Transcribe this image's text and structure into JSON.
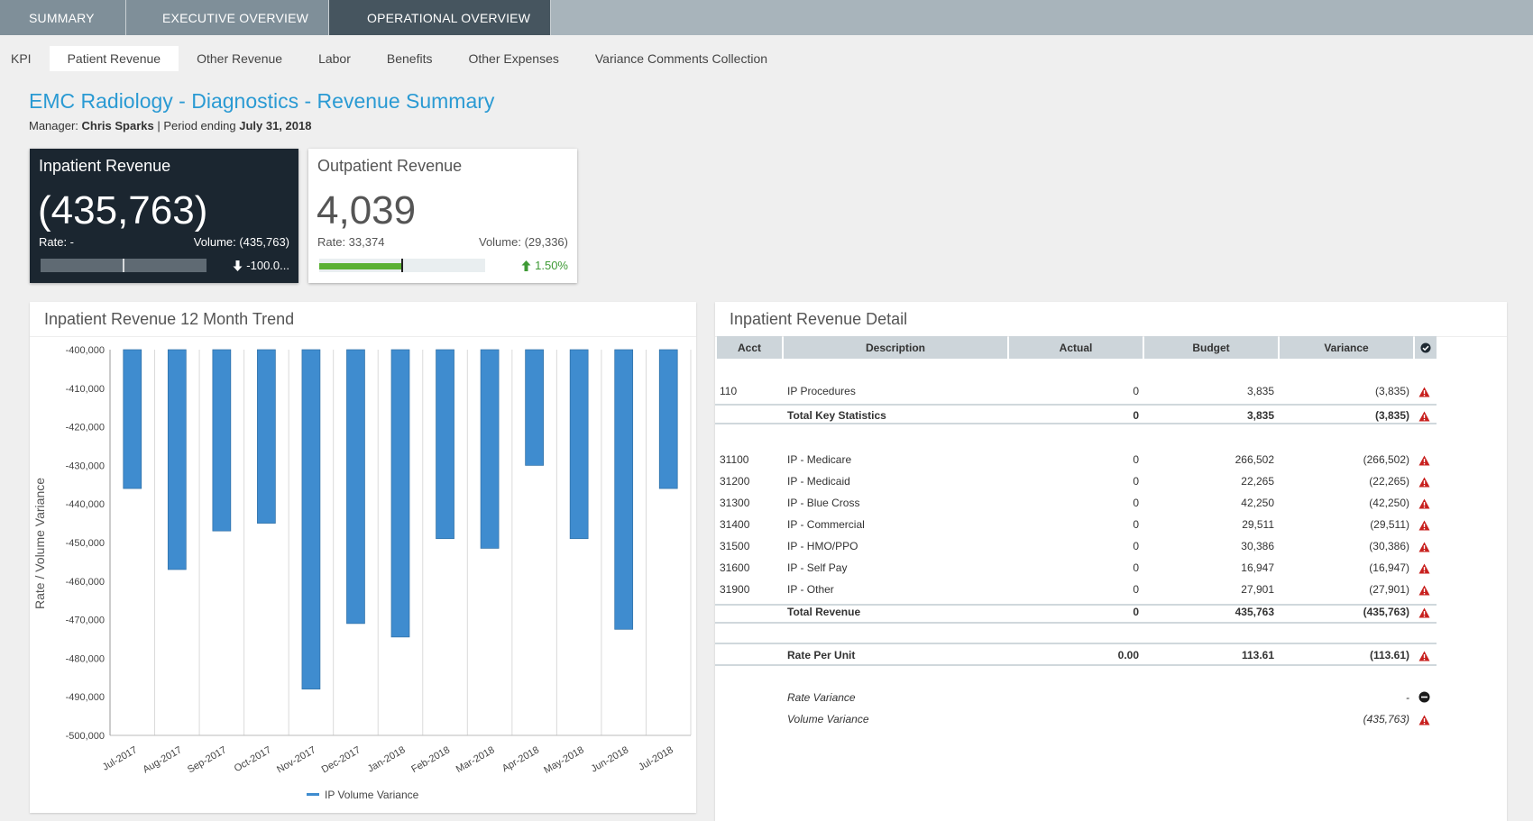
{
  "top_tabs": [
    "SUMMARY",
    "EXECUTIVE OVERVIEW",
    "OPERATIONAL OVERVIEW"
  ],
  "sub_tabs": [
    "KPI",
    "Patient Revenue",
    "Other Revenue",
    "Labor",
    "Benefits",
    "Other Expenses",
    "Variance Comments Collection"
  ],
  "header": {
    "title": "EMC Radiology - Diagnostics - Revenue Summary",
    "manager_label": "Manager:",
    "manager": "Chris Sparks",
    "period_label": "| Period ending",
    "period": "July 31, 2018"
  },
  "kpis": {
    "inpatient": {
      "title": "Inpatient Revenue",
      "value": "(435,763)",
      "rate": "Rate: -",
      "volume": "Volume: (435,763)",
      "change": "-100.0...",
      "bar_fill": 0,
      "marker": 0.5
    },
    "outpatient": {
      "title": "Outpatient Revenue",
      "value": "4,039",
      "rate": "Rate: 33,374",
      "volume": "Volume: (29,336)",
      "change": "1.50%",
      "bar_fill": 0.5,
      "marker": 0.5
    }
  },
  "colors": {
    "accent": "#2a9ad3",
    "bar": "#3f8ccf",
    "alert": "#c8201e",
    "positive": "#3e9a35"
  },
  "chart_title": "Inpatient Revenue 12 Month Trend",
  "chart_data": {
    "type": "bar",
    "title": "Inpatient Revenue 12 Month Trend",
    "categories": [
      "Jul-2017",
      "Aug-2017",
      "Sep-2017",
      "Oct-2017",
      "Nov-2017",
      "Dec-2017",
      "Jan-2018",
      "Feb-2018",
      "Mar-2018",
      "Apr-2018",
      "May-2018",
      "Jun-2018",
      "Jul-2018"
    ],
    "series": [
      {
        "name": "IP Volume Variance",
        "values": [
          -436000,
          -457000,
          -447000,
          -445000,
          -488000,
          -471000,
          -474500,
          -449000,
          -451500,
          -430000,
          -449000,
          -472500,
          -436000
        ]
      }
    ],
    "ylabel": "Rate / Volume Variance",
    "xlabel": "",
    "ylim": [
      -500000,
      -400000
    ],
    "yticks": [
      "-400,000",
      "-410,000",
      "-420,000",
      "-430,000",
      "-440,000",
      "-450,000",
      "-460,000",
      "-470,000",
      "-480,000",
      "-490,000",
      "-500,000"
    ],
    "grid": true,
    "legend": "bottom"
  },
  "detail": {
    "title": "Inpatient Revenue Detail",
    "headers": [
      "Acct",
      "Description",
      "Actual",
      "Budget",
      "Variance"
    ],
    "rows_key_stats": [
      {
        "acct": "110",
        "desc": "IP Procedures",
        "actual": "0",
        "budget": "3,835",
        "variance": "(3,835)"
      }
    ],
    "total_key_stats": {
      "desc": "Total Key Statistics",
      "actual": "0",
      "budget": "3,835",
      "variance": "(3,835)"
    },
    "rows_revenue": [
      {
        "acct": "31100",
        "desc": "IP - Medicare",
        "actual": "0",
        "budget": "266,502",
        "variance": "(266,502)"
      },
      {
        "acct": "31200",
        "desc": "IP - Medicaid",
        "actual": "0",
        "budget": "22,265",
        "variance": "(22,265)"
      },
      {
        "acct": "31300",
        "desc": "IP - Blue Cross",
        "actual": "0",
        "budget": "42,250",
        "variance": "(42,250)"
      },
      {
        "acct": "31400",
        "desc": "IP - Commercial",
        "actual": "0",
        "budget": "29,511",
        "variance": "(29,511)"
      },
      {
        "acct": "31500",
        "desc": "IP - HMO/PPO",
        "actual": "0",
        "budget": "30,386",
        "variance": "(30,386)"
      },
      {
        "acct": "31600",
        "desc": "IP - Self Pay",
        "actual": "0",
        "budget": "16,947",
        "variance": "(16,947)"
      },
      {
        "acct": "31900",
        "desc": "IP - Other",
        "actual": "0",
        "budget": "27,901",
        "variance": "(27,901)"
      }
    ],
    "total_revenue": {
      "desc": "Total Revenue",
      "actual": "0",
      "budget": "435,763",
      "variance": "(435,763)"
    },
    "rate_per_unit": {
      "desc": "Rate Per Unit",
      "actual": "0.00",
      "budget": "113.61",
      "variance": "(113.61)"
    },
    "rate_variance": {
      "desc": "Rate Variance",
      "variance": "-"
    },
    "volume_variance": {
      "desc": "Volume Variance",
      "variance": "(435,763)"
    }
  }
}
